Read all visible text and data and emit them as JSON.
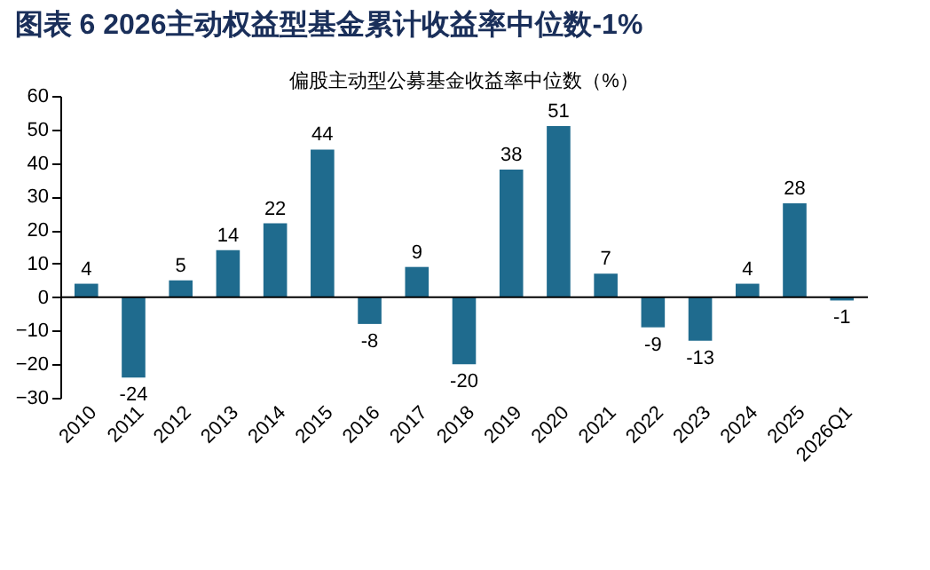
{
  "chart_data": {
    "type": "bar",
    "title": "图表 6   2026主动权益型基金累计收益率中位数-1%",
    "subtitle": "偏股主动型公募基金收益率中位数（%）",
    "categories": [
      "2010",
      "2011",
      "2012",
      "2013",
      "2014",
      "2015",
      "2016",
      "2017",
      "2018",
      "2019",
      "2020",
      "2021",
      "2022",
      "2023",
      "2024",
      "2025",
      "2026Q1"
    ],
    "values": [
      4,
      -24,
      5,
      14,
      22,
      44,
      -8,
      9,
      -20,
      38,
      51,
      7,
      -9,
      -13,
      4,
      28,
      -1
    ],
    "color": "#1f6b8e",
    "ylim": [
      -30,
      60
    ],
    "yticks": [
      -30,
      -20,
      -10,
      0,
      10,
      20,
      30,
      40,
      50,
      60
    ],
    "data_labels": true
  }
}
